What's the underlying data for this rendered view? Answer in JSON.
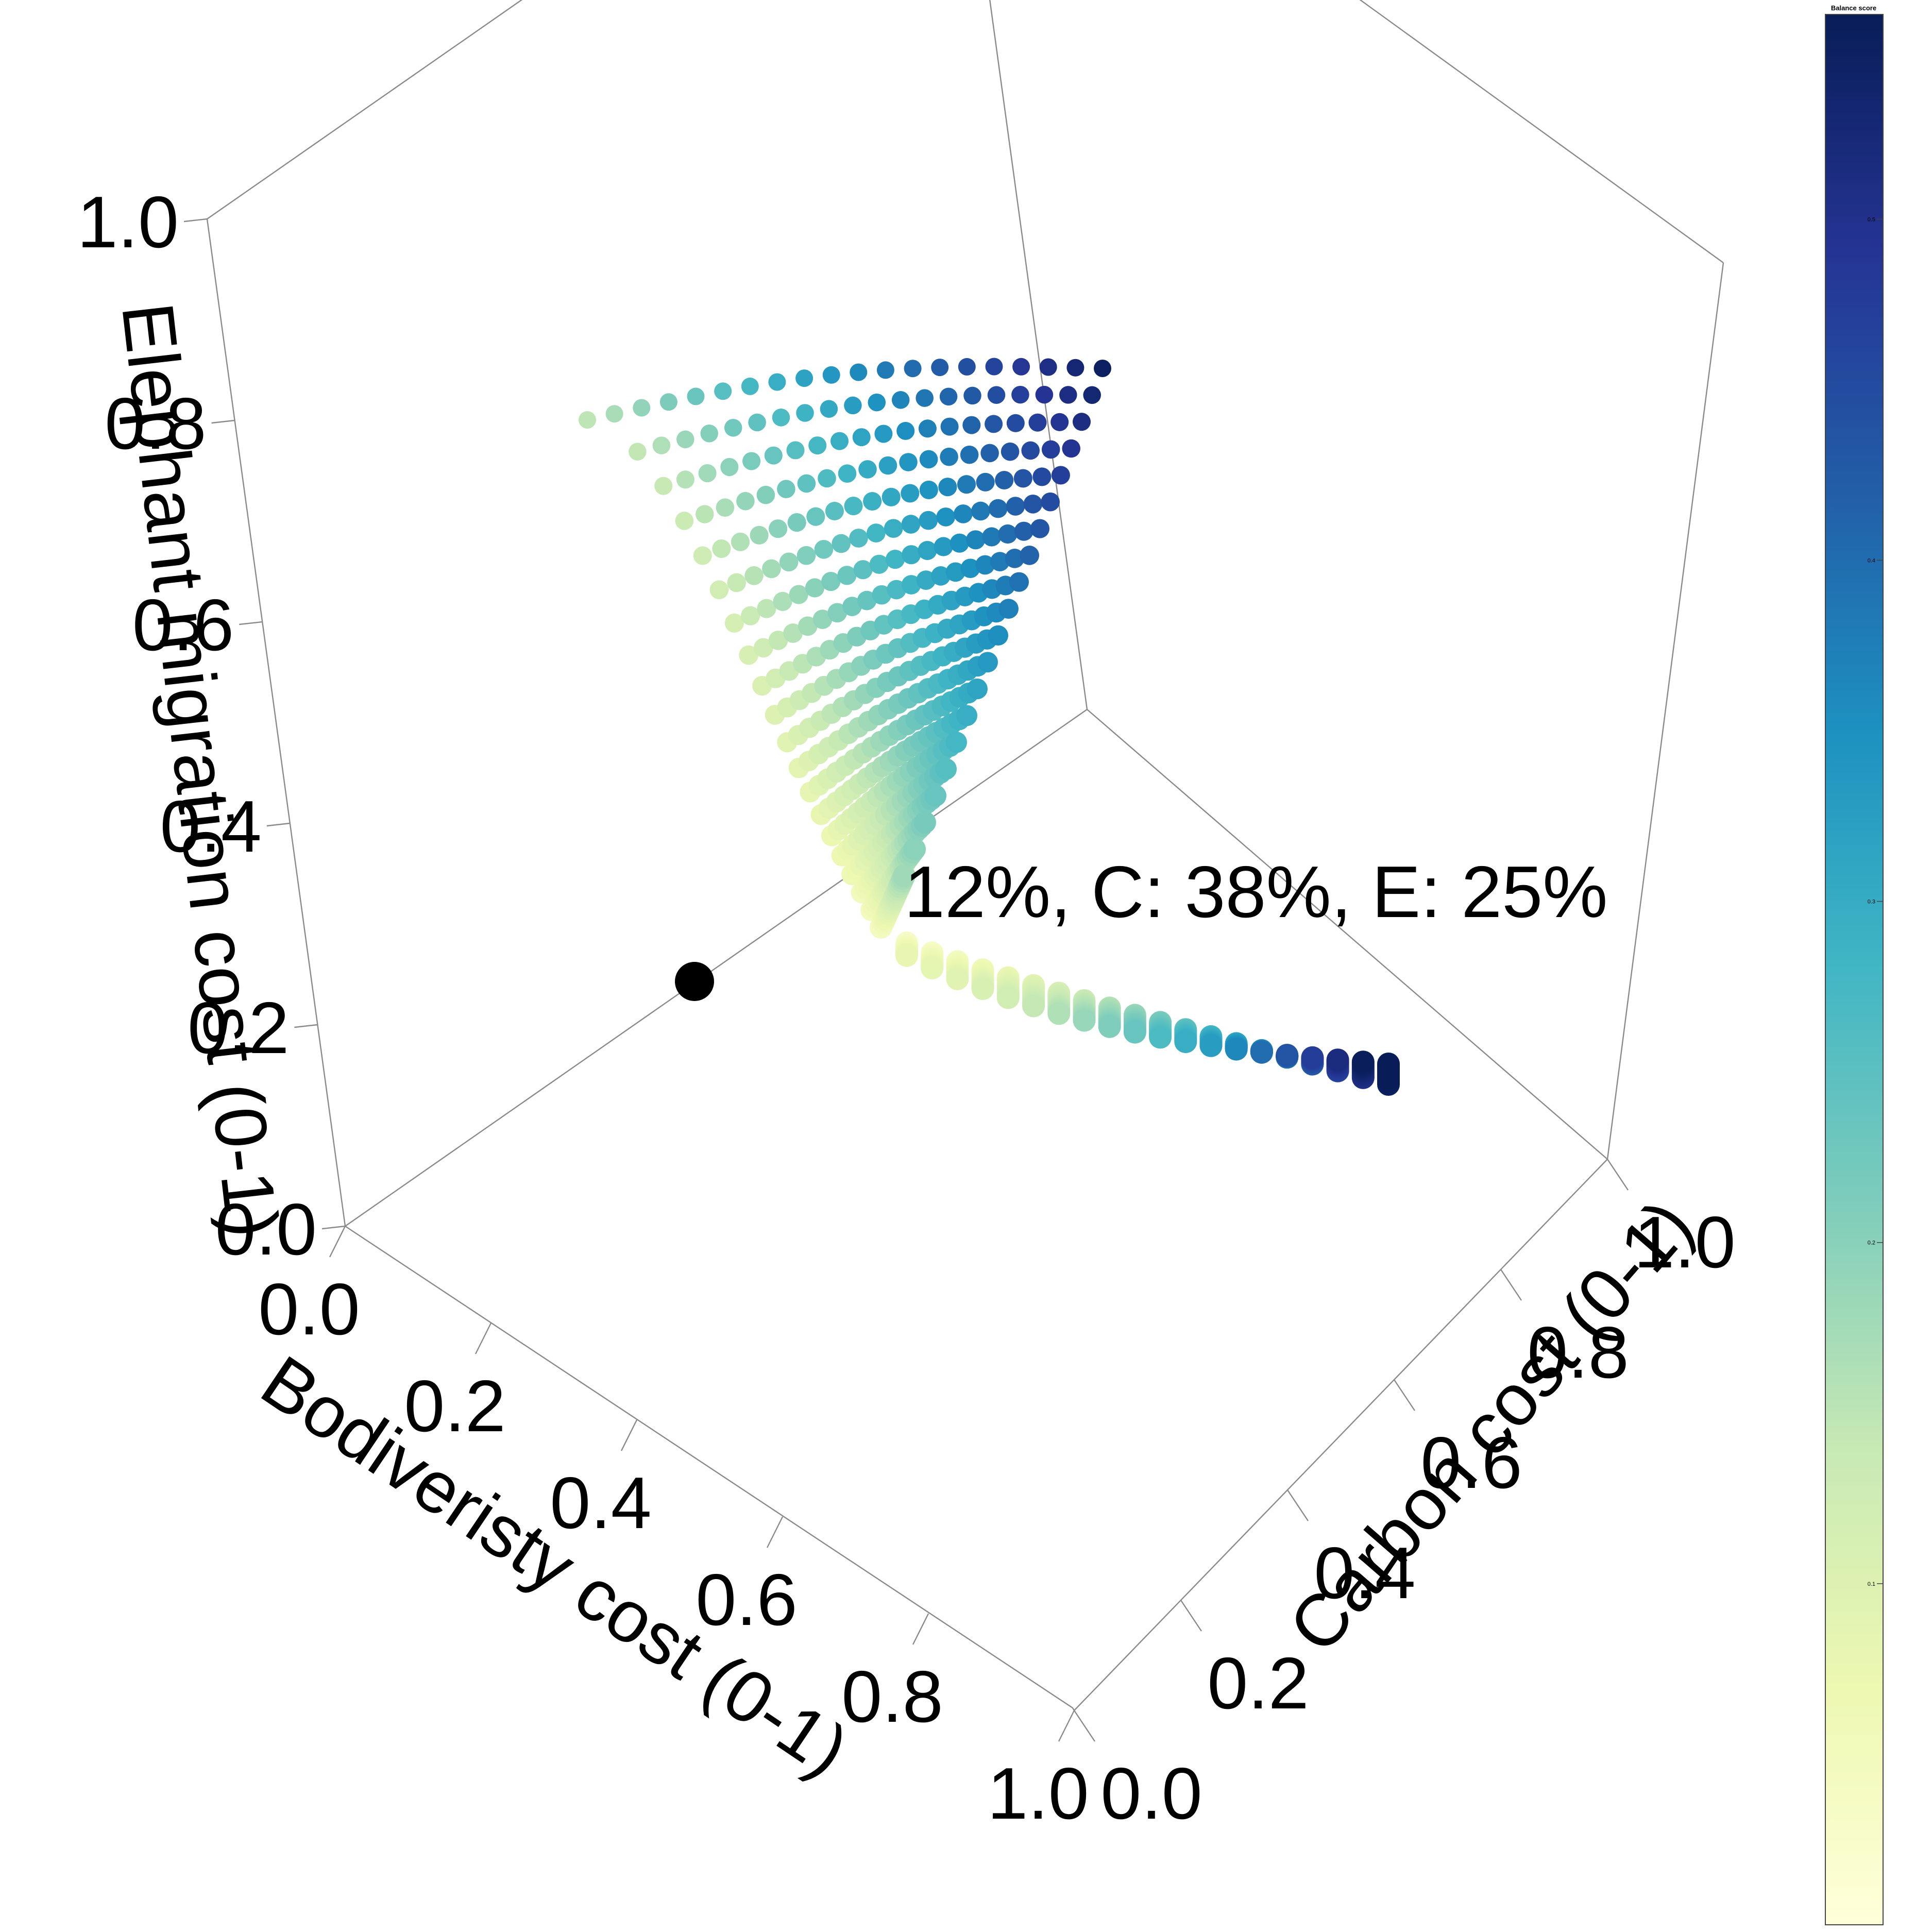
{
  "chart_data": {
    "type": "scatter",
    "projection": "3d",
    "title": "",
    "axes": {
      "x": {
        "label": "Bodiveristy cost (0-1)",
        "range": [
          0,
          1
        ],
        "ticks": [
          "0.0",
          "0.2",
          "0.4",
          "0.6",
          "0.8",
          "1.0"
        ]
      },
      "y": {
        "label": "Carbon cost (0-1)",
        "range": [
          0,
          1
        ],
        "ticks": [
          "0.0",
          "0.2",
          "0.4",
          "0.6",
          "0.8",
          "1.0"
        ]
      },
      "z": {
        "label": "Elephant migration cost (0-1)",
        "range": [
          0,
          1
        ],
        "ticks": [
          "0.0",
          "0.2",
          "0.4",
          "0.6",
          "0.8",
          "1.0"
        ]
      }
    },
    "colorbar": {
      "title": "Balance score",
      "range": [
        0,
        0.56
      ],
      "ticks": [
        "0.1",
        "0.2",
        "0.3",
        "0.4",
        "0.5"
      ],
      "colors": [
        "#ffffd9",
        "#edf8b1",
        "#c7e9b4",
        "#7fcdbb",
        "#41b6c4",
        "#1d91c0",
        "#225ea8",
        "#253494",
        "#081d58"
      ]
    },
    "series": [
      {
        "type": "surface-grid",
        "description_points": "approx. 20x20 grid of trade-off points forming a Pareto-like curved sheet",
        "corners": {
          "high_elephant_low_biodiversity": {
            "x": 0.32,
            "y": 0.0,
            "z": 0.86
          },
          "high_elephant_high_carbon": {
            "x": 0.0,
            "y": 0.6,
            "z": 0.88
          },
          "low_elephant_high_carbon": {
            "x": 0.0,
            "y": 0.98,
            "z": 0.16
          },
          "knee": {
            "x": 0.1,
            "y": 0.35,
            "z": 0.28
          }
        },
        "balance_range": [
          0.02,
          0.55
        ]
      },
      {
        "type": "highlight-point",
        "x": 0.25,
        "y": 0.0,
        "z": 0.2,
        "color": "#000000"
      }
    ],
    "annotation": "12%, C: 38%, E: 25%"
  }
}
